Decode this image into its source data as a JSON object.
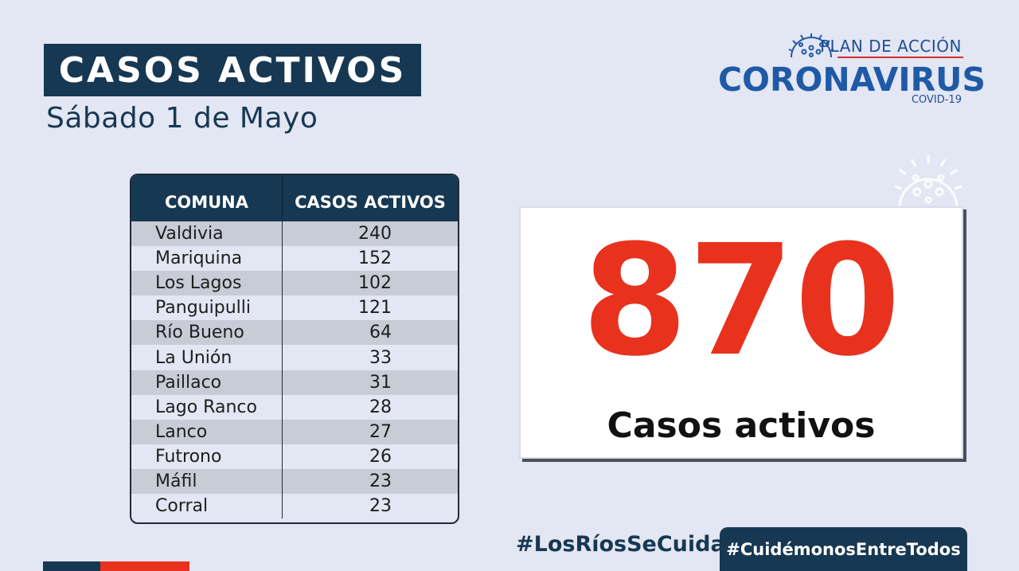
{
  "header": {
    "title": "CASOS ACTIVOS",
    "date": "Sábado 1 de Mayo"
  },
  "logo": {
    "plan": "PLAN DE ACCIÓN",
    "main": "CORONAVIRUS",
    "sub": "COVID-19"
  },
  "table": {
    "col_comuna": "COMUNA",
    "col_casos": "CASOS ACTIVOS",
    "rows": [
      {
        "comuna": "Valdivia",
        "casos": "240"
      },
      {
        "comuna": "Mariquina",
        "casos": "152"
      },
      {
        "comuna": "Los Lagos",
        "casos": "102"
      },
      {
        "comuna": "Panguipulli",
        "casos": "121"
      },
      {
        "comuna": "Río Bueno",
        "casos": "64"
      },
      {
        "comuna": "La Unión",
        "casos": "33"
      },
      {
        "comuna": "Paillaco",
        "casos": "31"
      },
      {
        "comuna": "Lago Ranco",
        "casos": "28"
      },
      {
        "comuna": "Lanco",
        "casos": "27"
      },
      {
        "comuna": "Futrono",
        "casos": "26"
      },
      {
        "comuna": "Máfil",
        "casos": "23"
      },
      {
        "comuna": "Corral",
        "casos": "23"
      }
    ]
  },
  "total": {
    "value": "870",
    "label": "Casos activos"
  },
  "footer": {
    "hashtag_1": "#LosRíosSeCuida",
    "hashtag_2": "#CuidémonosEntreTodos"
  },
  "colors": {
    "navy": "#173852",
    "red": "#e8321e",
    "background": "#e3e6f3",
    "logo_blue": "#1f5aa6"
  },
  "icons": [
    "coronavirus-icon",
    "coronavirus-decoration-icon"
  ]
}
